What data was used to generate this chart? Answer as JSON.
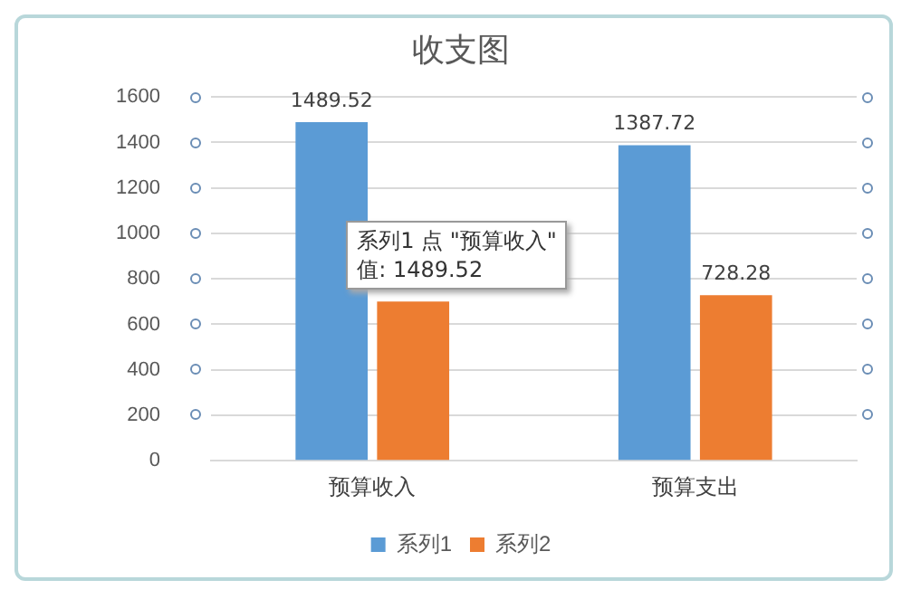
{
  "chart_data": {
    "type": "bar",
    "title": "收支图",
    "categories": [
      "预算收入",
      "预算支出"
    ],
    "series": [
      {
        "name": "系列1",
        "color": "#5b9bd5",
        "values": [
          1489.52,
          1387.72
        ],
        "value_labels": [
          "1489.52",
          "1387.72"
        ]
      },
      {
        "name": "系列2",
        "color": "#ed7d31",
        "values": [
          700,
          728.28
        ],
        "value_labels": [
          null,
          "728.28"
        ]
      }
    ],
    "ylim": [
      0,
      1600
    ],
    "yticks": [
      0,
      200,
      400,
      600,
      800,
      1000,
      1200,
      1400,
      1600
    ],
    "grid": "y",
    "legend": "bottom",
    "annotations": [
      "系列1 点 \"预算收入\"\n值: 1489.52"
    ]
  }
}
